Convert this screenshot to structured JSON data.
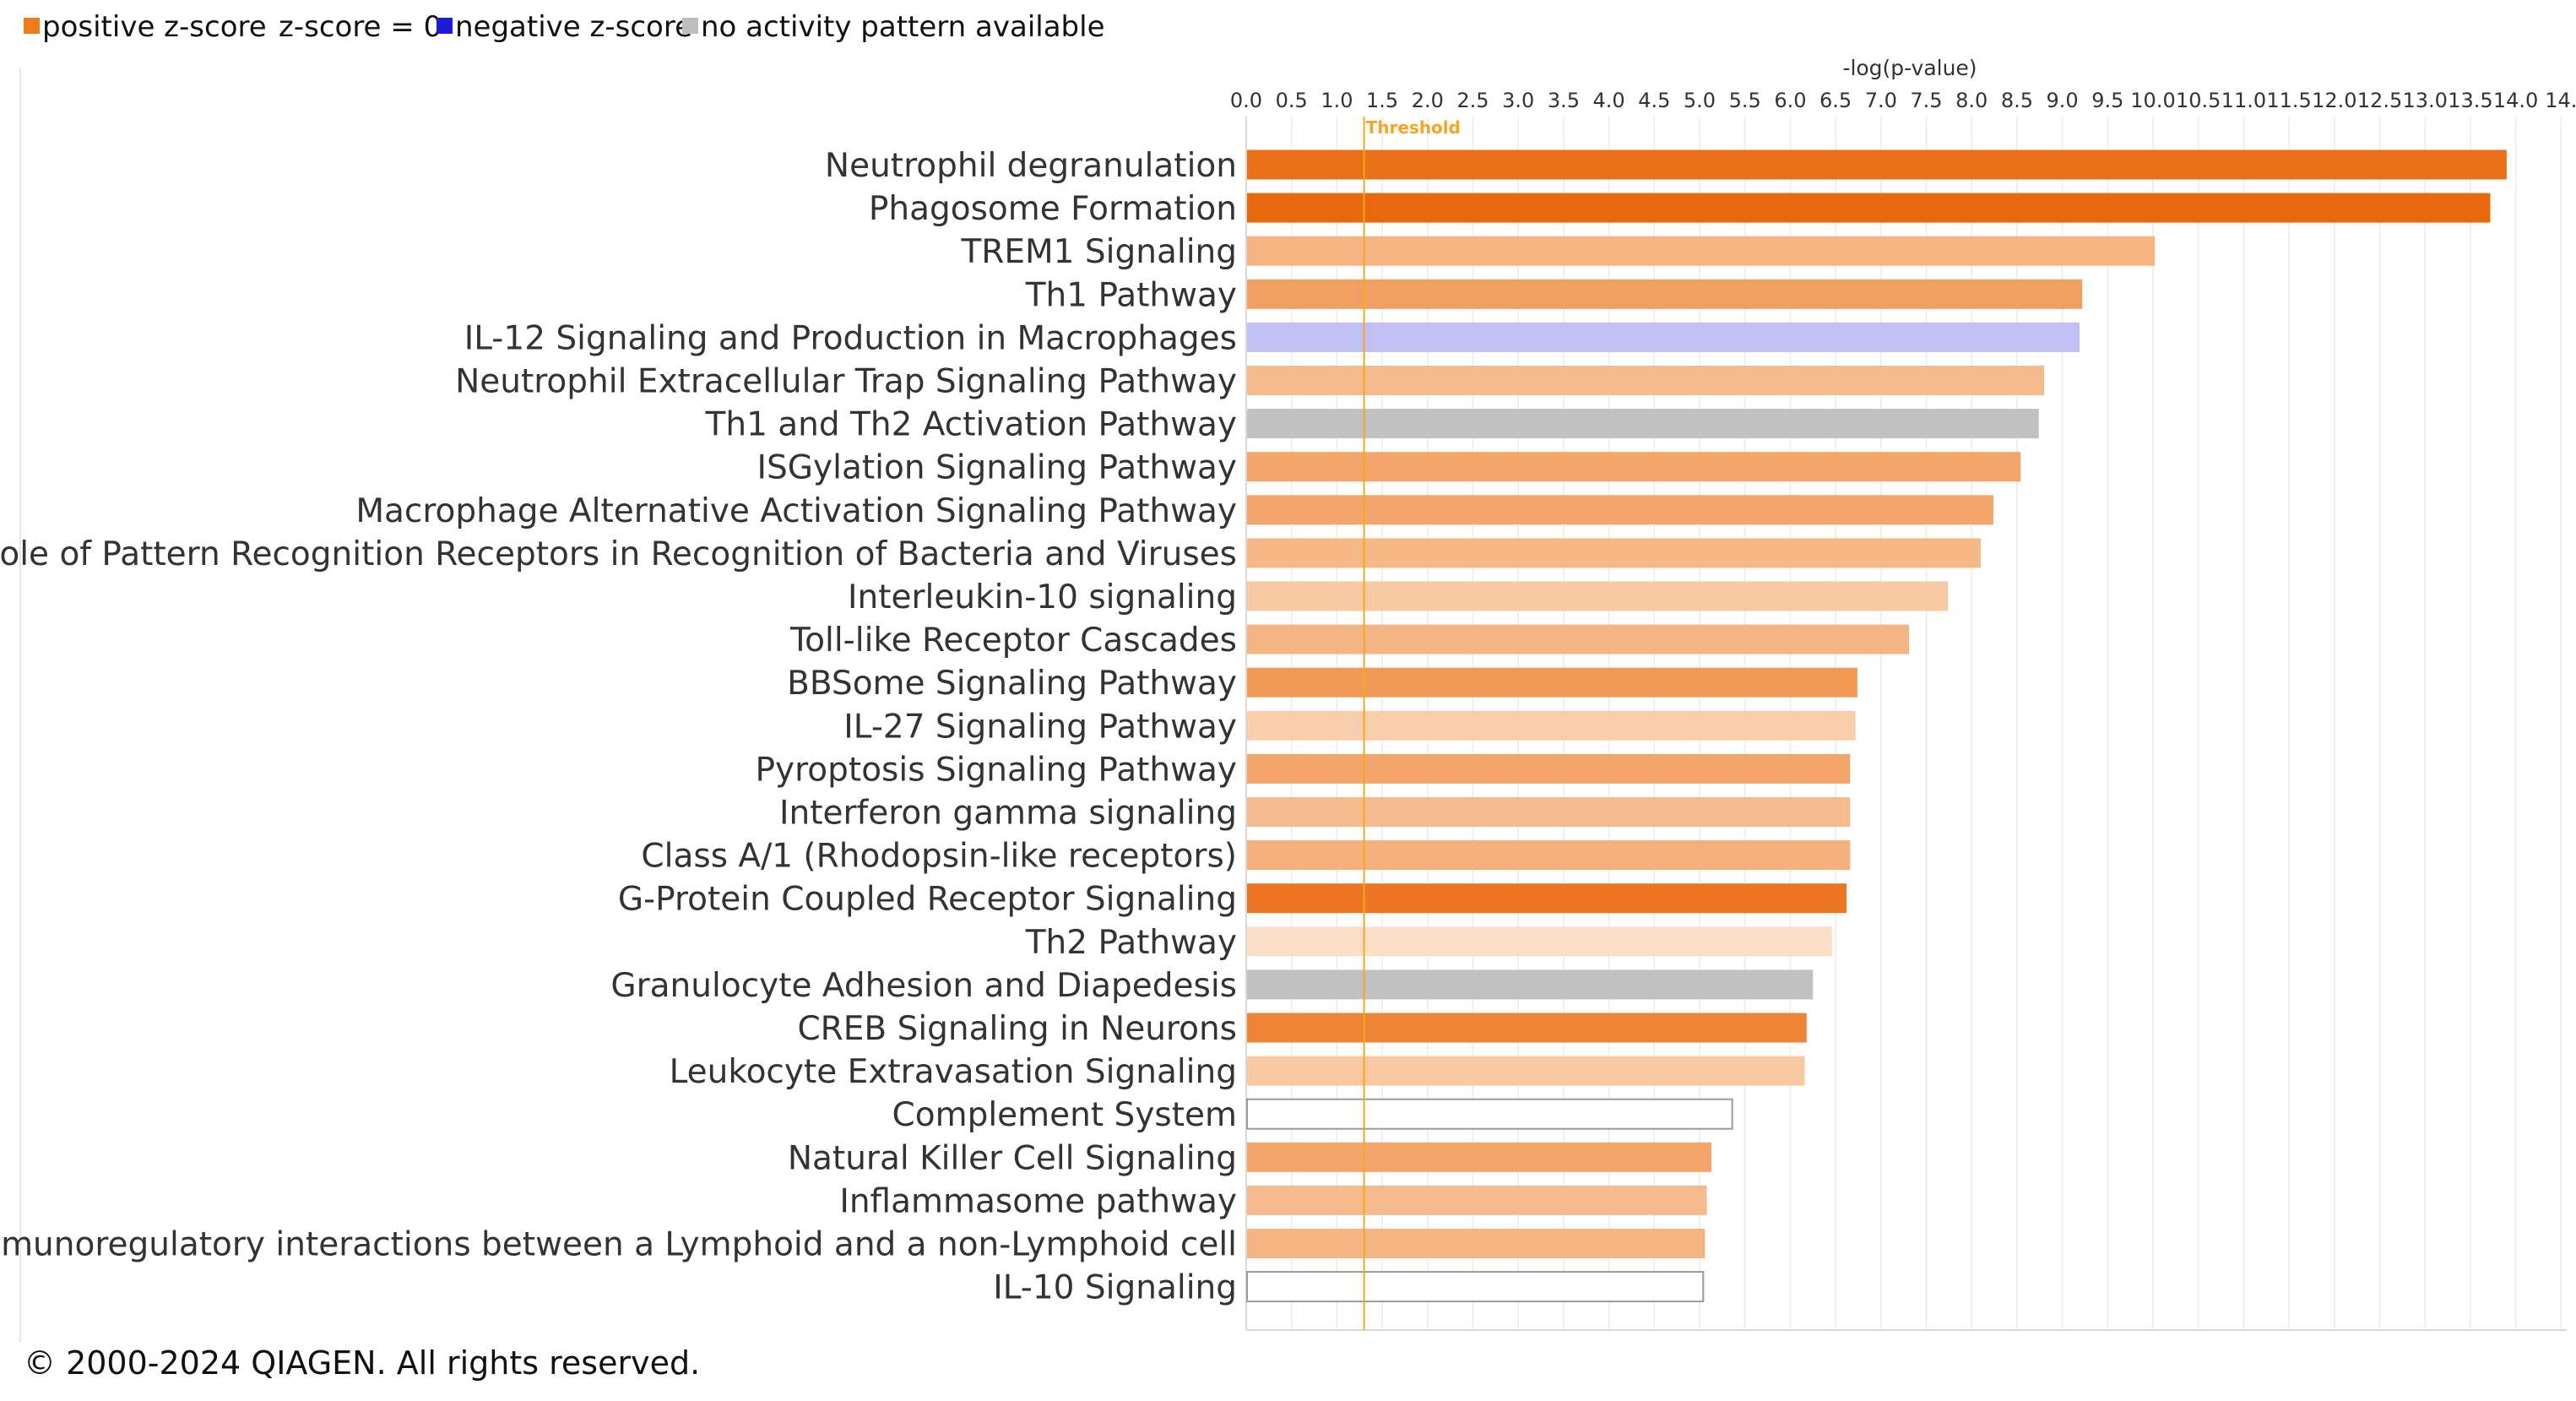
{
  "legend": {
    "items": [
      {
        "label": "positive z-score",
        "color": "#f07d1c",
        "marker": true
      },
      {
        "label": "z-score = 0",
        "color": "#ffffff",
        "marker": false
      },
      {
        "label": "negative z-score",
        "color": "#1b1bd8",
        "marker": true
      },
      {
        "label": "no activity pattern available",
        "color": "#bdbdbd",
        "marker": true
      }
    ]
  },
  "copyright": "© 2000-2024 QIAGEN. All rights reserved.",
  "chart_data": {
    "type": "bar",
    "orientation": "horizontal",
    "title": "",
    "xlabel": "-log(p-value)",
    "ylabel": "",
    "xlim": [
      0,
      14.5
    ],
    "grid": true,
    "legend_position": "top-left",
    "ticks": [
      "0.0",
      "0.5",
      "1.0",
      "1.5",
      "2.0",
      "2.5",
      "3.0",
      "3.5",
      "4.0",
      "4.5",
      "5.0",
      "5.5",
      "6.0",
      "6.5",
      "7.0",
      "7.5",
      "8.0",
      "8.5",
      "9.0",
      "9.5",
      "10.0",
      "10.5",
      "11.0",
      "11.5",
      "12.0",
      "12.5",
      "13.0",
      "13.5",
      "14.0",
      "14."
    ],
    "threshold": {
      "value": 1.3,
      "label": "Threshold",
      "color": "#f5a623"
    },
    "categories": [
      "Neutrophil degranulation",
      "Phagosome Formation",
      "TREM1 Signaling",
      "Th1 Pathway",
      "IL-12 Signaling and Production in Macrophages",
      "Neutrophil Extracellular Trap Signaling Pathway",
      "Th1 and Th2 Activation Pathway",
      "ISGylation Signaling Pathway",
      "Macrophage Alternative Activation Signaling Pathway",
      "Role of Pattern Recognition Receptors in Recognition of Bacteria and Viruses",
      "Interleukin-10 signaling",
      "Toll-like Receptor Cascades",
      "BBSome Signaling Pathway",
      "IL-27 Signaling Pathway",
      "Pyroptosis Signaling Pathway",
      "Interferon gamma signaling",
      "Class A/1 (Rhodopsin-like receptors)",
      "G-Protein Coupled Receptor Signaling",
      "Th2 Pathway",
      "Granulocyte Adhesion and Diapedesis",
      "CREB Signaling in Neurons",
      "Leukocyte Extravasation Signaling",
      "Complement System",
      "Natural Killer Cell Signaling",
      "Inflammasome pathway",
      "Immunoregulatory interactions between a Lymphoid and a non-Lymphoid cell",
      "IL-10 Signaling"
    ],
    "values": [
      13.9,
      13.72,
      10.02,
      9.22,
      9.19,
      8.8,
      8.74,
      8.54,
      8.24,
      8.1,
      7.74,
      7.31,
      6.74,
      6.72,
      6.66,
      6.66,
      6.66,
      6.62,
      6.46,
      6.25,
      6.18,
      6.16,
      5.36,
      5.13,
      5.08,
      5.06,
      5.04
    ],
    "colors": [
      "#ea7118",
      "#e9690f",
      "#f5b481",
      "#f2a062",
      "#c0c0f5",
      "#f6bb8c",
      "#c1c1c1",
      "#f3a56a",
      "#f3a56a",
      "#f6b887",
      "#f8caa3",
      "#f5b483",
      "#f19a55",
      "#f9cfab",
      "#f3a56a",
      "#f6bb8d",
      "#f5b07c",
      "#eb7523",
      "#fbdfc7",
      "#c1c1c1",
      "#ee8435",
      "#f8c9a2",
      "#ffffff",
      "#f3a56a",
      "#f6bb8d",
      "#f5b483",
      "#ffffff"
    ]
  }
}
